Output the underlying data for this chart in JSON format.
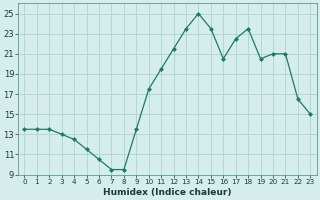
{
  "x": [
    0,
    1,
    2,
    3,
    4,
    5,
    6,
    7,
    8,
    9,
    10,
    11,
    12,
    13,
    14,
    15,
    16,
    17,
    18,
    19,
    20,
    21,
    22,
    23
  ],
  "y": [
    13.5,
    13.5,
    13.5,
    13.0,
    12.5,
    11.5,
    10.5,
    9.5,
    9.5,
    13.5,
    17.5,
    19.5,
    21.5,
    23.5,
    25.0,
    23.5,
    20.5,
    22.5,
    23.5,
    20.5,
    21.0,
    21.0,
    16.5,
    15.0
  ],
  "line_color": "#1f7a65",
  "marker_color": "#1f7a65",
  "bg_color": "#d5eeeb",
  "grid_color": "#b0d8d3",
  "xlabel": "Humidex (Indice chaleur)",
  "xlim": [
    -0.5,
    23.5
  ],
  "ylim": [
    9,
    26
  ],
  "yticks": [
    9,
    11,
    13,
    15,
    17,
    19,
    21,
    23,
    25
  ],
  "xtick_labels": [
    "0",
    "1",
    "2",
    "3",
    "4",
    "5",
    "6",
    "7",
    "8",
    "9",
    "10",
    "11",
    "12",
    "13",
    "14",
    "15",
    "16",
    "17",
    "18",
    "19",
    "20",
    "21",
    "22",
    "23"
  ]
}
